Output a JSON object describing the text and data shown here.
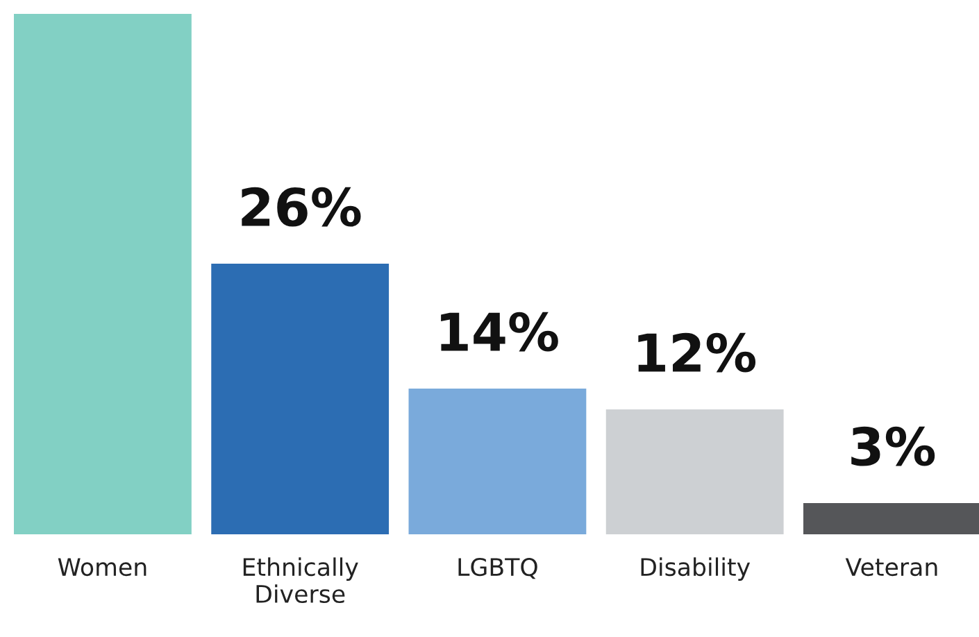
{
  "chart_data": {
    "type": "bar",
    "categories": [
      "Women",
      "Ethnically\nDiverse",
      "LGBTQ",
      "Disability",
      "Veteran"
    ],
    "values": [
      50,
      26,
      14,
      12,
      3
    ],
    "value_labels": [
      null,
      "26%",
      "14%",
      "12%",
      "3%"
    ],
    "colors": [
      "#82d0c4",
      "#2c6db3",
      "#7aaadb",
      "#cdd0d3",
      "#555659"
    ],
    "ylim": [
      0,
      50
    ],
    "tick_labels": "x",
    "grid": false,
    "legend": false
  }
}
